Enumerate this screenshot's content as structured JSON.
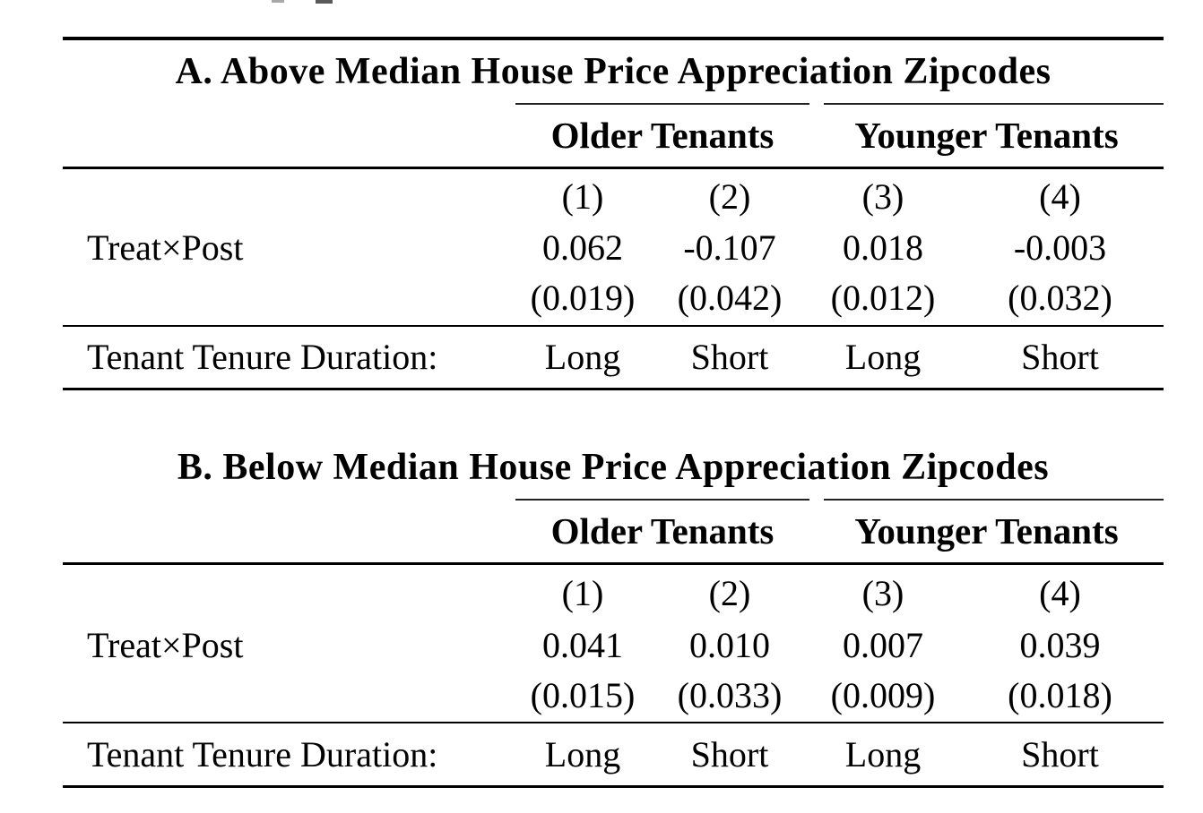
{
  "page": {
    "background": "#ffffff",
    "text_color": "#000000",
    "rule_color": "#000000",
    "artifact_note": "two small cropped-text fragments at top edge"
  },
  "panels": [
    {
      "id": "A",
      "title": "A. Above Median House Price Appreciation Zipcodes",
      "groups": {
        "older": "Older Tenants",
        "younger": "Younger Tenants"
      },
      "column_numbers": [
        "(1)",
        "(2)",
        "(3)",
        "(4)"
      ],
      "row_label": "Treat×Post",
      "coefficients": [
        "0.062",
        "-0.107",
        "0.018",
        "-0.003"
      ],
      "std_errors": [
        "(0.019)",
        "(0.042)",
        "(0.012)",
        "(0.032)"
      ],
      "tenure_label": "Tenant Tenure Duration:",
      "tenure_values": [
        "Long",
        "Short",
        "Long",
        "Short"
      ]
    },
    {
      "id": "B",
      "title": "B. Below Median House Price Appreciation Zipcodes",
      "groups": {
        "older": "Older Tenants",
        "younger": "Younger Tenants"
      },
      "column_numbers": [
        "(1)",
        "(2)",
        "(3)",
        "(4)"
      ],
      "row_label": "Treat×Post",
      "coefficients": [
        "0.041",
        "0.010",
        "0.007",
        "0.039"
      ],
      "std_errors": [
        "(0.015)",
        "(0.033)",
        "(0.009)",
        "(0.018)"
      ],
      "tenure_label": "Tenant Tenure Duration:",
      "tenure_values": [
        "Long",
        "Short",
        "Long",
        "Short"
      ]
    }
  ]
}
